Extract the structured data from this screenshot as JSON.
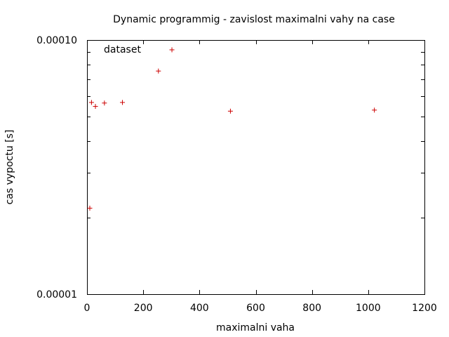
{
  "chart_data": {
    "type": "scatter",
    "title": "Dynamic programmig - zavislost maximalni vahy na case",
    "xlabel": "maximalni vaha",
    "ylabel": "cas vypoctu [s]",
    "xlim": [
      0,
      1200
    ],
    "ylim": [
      1e-05,
      0.0001
    ],
    "yscale": "log",
    "x_ticks": [
      0,
      200,
      400,
      600,
      800,
      1000,
      1200
    ],
    "x_tick_labels": [
      "0",
      "200",
      "400",
      "600",
      "800",
      "1000",
      "1200"
    ],
    "y_tick_labels": [
      "0.00001",
      "0.00010"
    ],
    "legend": {
      "placement": "top-left",
      "entries": [
        "dataset"
      ]
    },
    "marker_color": "#cc0000",
    "series": [
      {
        "name": "dataset",
        "x": [
          10,
          16,
          30,
          62,
          126,
          254,
          302,
          510,
          1022
        ],
        "y": [
          2.18e-05,
          5.68e-05,
          5.48e-05,
          5.65e-05,
          5.68e-05,
          7.55e-05,
          9.15e-05,
          5.25e-05,
          5.3e-05
        ]
      }
    ]
  }
}
